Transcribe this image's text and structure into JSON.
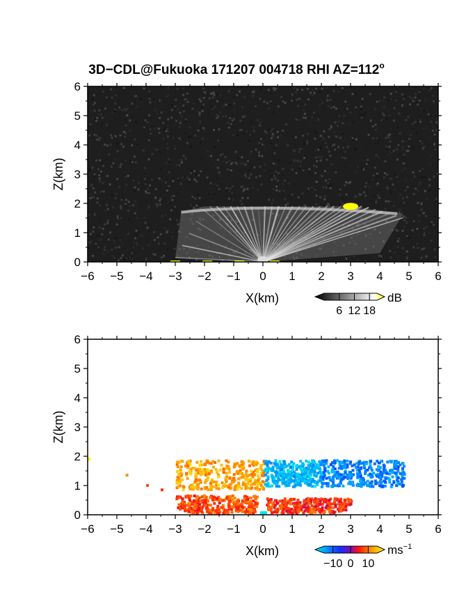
{
  "figure": {
    "title": "3D−CDL@Fukuoka 171207 004718 RHI AZ=112",
    "title_superscript": "o"
  },
  "chart_data": [
    {
      "type": "heatmap",
      "variable": "reflectivity",
      "xlabel": "X(km)",
      "ylabel": "Z(km)",
      "xlim": [
        -6,
        6
      ],
      "ylim": [
        0,
        6
      ],
      "x_ticks": [
        "−6",
        "−5",
        "−4",
        "−3",
        "−2",
        "−1",
        "0",
        "1",
        "2",
        "3",
        "4",
        "5",
        "6"
      ],
      "y_ticks": [
        "0",
        "1",
        "2",
        "3",
        "4",
        "5",
        "6"
      ],
      "colorbar": {
        "unit": "dB",
        "tick_labels": [
          "6",
          "12",
          "18"
        ],
        "range": [
          0,
          21
        ]
      },
      "features": [
        {
          "description": "fan of beams from origin",
          "x_range": [
            -3.0,
            4.8
          ],
          "z_top": 1.9
        },
        {
          "description": "strong echo",
          "x": 3.0,
          "z": 1.9,
          "value_db": 20
        }
      ]
    },
    {
      "type": "heatmap",
      "variable": "doppler velocity",
      "xlabel": "X(km)",
      "ylabel": "Z(km)",
      "xlim": [
        -6,
        6
      ],
      "ylim": [
        0,
        6
      ],
      "x_ticks": [
        "−6",
        "−5",
        "−4",
        "−3",
        "−2",
        "−1",
        "0",
        "1",
        "2",
        "3",
        "4",
        "5",
        "6"
      ],
      "y_ticks": [
        "0",
        "1",
        "2",
        "3",
        "4",
        "5",
        "6"
      ],
      "colorbar": {
        "unit": "ms",
        "unit_superscript": "−1",
        "tick_labels": [
          "−10",
          "0",
          "10"
        ],
        "range": [
          -15,
          15
        ]
      },
      "regions": [
        {
          "x_range": [
            -3.0,
            0.0
          ],
          "z_range": [
            0.9,
            1.9
          ],
          "velocity": 10
        },
        {
          "x_range": [
            -3.0,
            -0.2
          ],
          "z_range": [
            0.1,
            0.7
          ],
          "velocity": 6
        },
        {
          "x_range": [
            0.0,
            2.0
          ],
          "z_range": [
            1.0,
            1.9
          ],
          "velocity": -12
        },
        {
          "x_range": [
            2.0,
            4.8
          ],
          "z_range": [
            1.0,
            1.9
          ],
          "velocity": -9
        },
        {
          "x_range": [
            0.1,
            3.0
          ],
          "z_range": [
            0.1,
            0.6
          ],
          "velocity": 5
        }
      ]
    }
  ]
}
